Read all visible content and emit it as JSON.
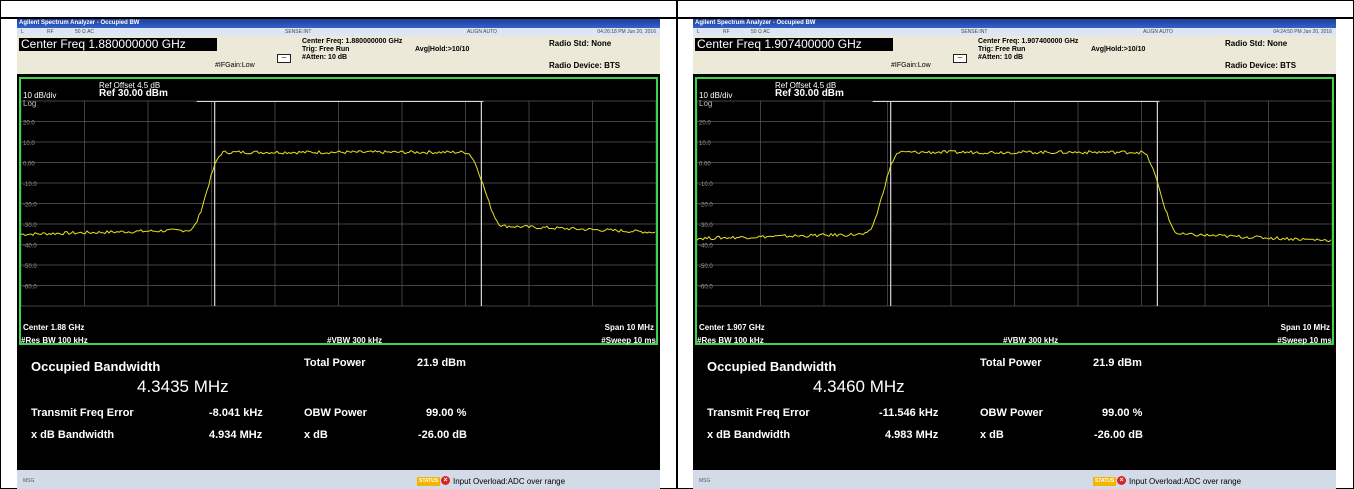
{
  "screens": [
    {
      "title": "Agilent Spectrum Analyzer - Occupied BW",
      "status": {
        "l": "L",
        "rf": "RF",
        "ohm": "50 Ω  AC",
        "sense": "SENSE:INT",
        "align": "ALIGN AUTO",
        "time": "04:26:18 PM Jun 20, 2016"
      },
      "center_freq_box": "Center Freq 1.880000000 GHz",
      "center_freq_small": "Center Freq: 1.880000000 GHz",
      "trig": "Trig: Free Run",
      "avg": "Avg|Hold:>10/10",
      "ifgain": "#IFGain:Low",
      "atten": "#Atten: 10 dB",
      "radio_std": "Radio Std: None",
      "radio_device": "Radio Device: BTS",
      "ref_offset": "Ref Offset 4.5 dB",
      "scale": "10 dB/div",
      "ref": "Ref 30.00 dBm",
      "log": "Log",
      "center_lbl": "Center  1.88 GHz",
      "span": "Span 10 MHz",
      "res_bw": "#Res BW  100 kHz",
      "vbw": "#VBW  300 kHz",
      "sweep": "#Sweep  10 ms",
      "occ_bw_label": "Occupied Bandwidth",
      "occ_bw_value": "4.3435 MHz",
      "total_power_label": "Total Power",
      "total_power_value": "21.9 dBm",
      "tfe_label": "Transmit Freq Error",
      "tfe_value": "-8.041 kHz",
      "obw_label": "OBW Power",
      "obw_value": "99.00 %",
      "xdbbw_label": "x dB Bandwidth",
      "xdbbw_value": "4.934 MHz",
      "xdb_label": "x dB",
      "xdb_value": "-26.00 dB",
      "msg": "MSG",
      "status_tag": "STATUS",
      "overload": "Input Overload:ADC over range",
      "trace": {
        "floor_left": -35,
        "floor_right": -33,
        "plateau": 5
      }
    },
    {
      "title": "Agilent Spectrum Analyzer - Occupied BW",
      "status": {
        "l": "L",
        "rf": "RF",
        "ohm": "50 Ω  AC",
        "sense": "SENSE:INT",
        "align": "ALIGN AUTO",
        "time": "04:24:50 PM Jun 20, 2016"
      },
      "center_freq_box": "Center Freq 1.907400000 GHz",
      "center_freq_small": "Center Freq: 1.907400000 GHz",
      "trig": "Trig: Free Run",
      "avg": "Avg|Hold:>10/10",
      "ifgain": "#IFGain:Low",
      "atten": "#Atten: 10 dB",
      "radio_std": "Radio Std: None",
      "radio_device": "Radio Device: BTS",
      "ref_offset": "Ref Offset 4.5 dB",
      "scale": "10 dB/div",
      "ref": "Ref 30.00 dBm",
      "log": "Log",
      "center_lbl": "Center  1.907 GHz",
      "span": "Span 10 MHz",
      "res_bw": "#Res BW  100 kHz",
      "vbw": "#VBW  300 kHz",
      "sweep": "#Sweep  10 ms",
      "occ_bw_label": "Occupied Bandwidth",
      "occ_bw_value": "4.3460 MHz",
      "total_power_label": "Total Power",
      "total_power_value": "21.9 dBm",
      "tfe_label": "Transmit Freq Error",
      "tfe_value": "-11.546 kHz",
      "obw_label": "OBW Power",
      "obw_value": "99.00 %",
      "xdbbw_label": "x dB Bandwidth",
      "xdbbw_value": "4.983 MHz",
      "xdb_label": "x dB",
      "xdb_value": "-26.00 dB",
      "msg": "MSG",
      "status_tag": "STATUS",
      "overload": "Input Overload:ADC over range",
      "trace": {
        "floor_left": -37,
        "floor_right": -37,
        "plateau": 5
      }
    }
  ],
  "y_ticks": [
    "20.0",
    "10.0",
    "0.00",
    "-10.0",
    "-20.0",
    "-30.0",
    "-40.0",
    "-50.0",
    "-60.0"
  ],
  "colors": {
    "trace": "#e8e020",
    "grid": "#5a5a5a",
    "border": "#3bd44a",
    "markers": "#d8d8d8"
  }
}
